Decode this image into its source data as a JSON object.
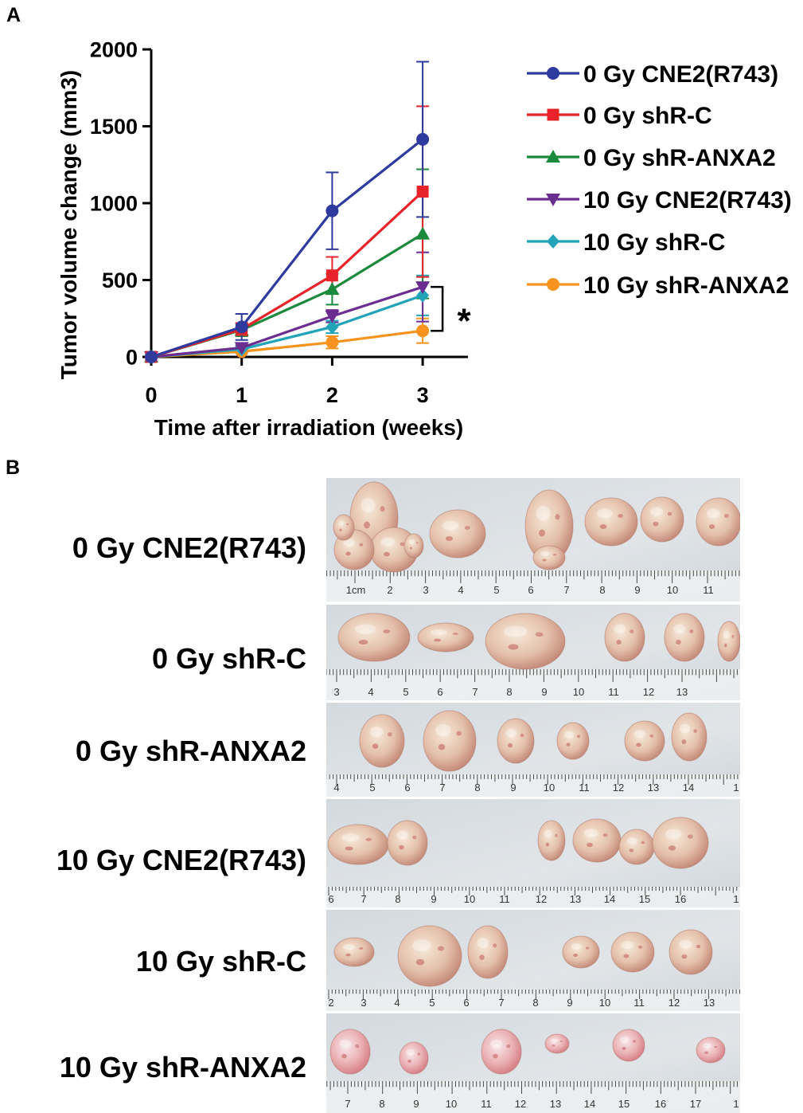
{
  "panels": {
    "a_label": "A",
    "b_label": "B"
  },
  "chart_data": {
    "type": "line",
    "xlabel": "Time after irradiation (weeks)",
    "ylabel": "Tumor volume change (mm3)",
    "x": [
      0,
      1,
      2,
      3
    ],
    "xticks": [
      "0",
      "1",
      "2",
      "3"
    ],
    "yticks": [
      "0",
      "500",
      "1000",
      "1500",
      "2000"
    ],
    "xlim": [
      0,
      3.5
    ],
    "ylim": [
      0,
      2000
    ],
    "grid": false,
    "legend_position": "right",
    "series": [
      {
        "name": "0 Gy CNE2(R743)",
        "color": "#2e3a9d",
        "marker": "circle",
        "values": [
          0,
          195,
          950,
          1415
        ],
        "error": [
          0,
          85,
          250,
          505
        ]
      },
      {
        "name": "0 Gy shR-C",
        "color": "#e8232a",
        "marker": "square",
        "values": [
          0,
          180,
          530,
          1075
        ],
        "error": [
          0,
          40,
          120,
          555
        ]
      },
      {
        "name": "0 Gy shR-ANXA2",
        "color": "#1b8a3c",
        "marker": "triangle-up",
        "values": [
          0,
          175,
          440,
          800
        ],
        "error": [
          0,
          40,
          100,
          420
        ]
      },
      {
        "name": "10 Gy CNE2(R743)",
        "color": "#6c2d91",
        "marker": "triangle-down",
        "values": [
          0,
          60,
          265,
          455
        ],
        "error": [
          0,
          15,
          40,
          225
        ]
      },
      {
        "name": "10 Gy shR-C",
        "color": "#22a4b8",
        "marker": "diamond",
        "values": [
          0,
          50,
          195,
          400
        ],
        "error": [
          0,
          15,
          40,
          130
        ]
      },
      {
        "name": "10 Gy shR-ANXA2",
        "color": "#f7931e",
        "marker": "circle",
        "values": [
          0,
          35,
          95,
          170
        ],
        "error": [
          0,
          10,
          40,
          80
        ]
      }
    ],
    "annotations": [
      {
        "text": "*",
        "x": 3,
        "between_series": [
          3,
          5
        ]
      }
    ]
  },
  "photo_panel": {
    "rows": [
      {
        "label": "0 Gy CNE2(R743)",
        "ruler": [
          "1cm",
          "2",
          "3",
          "4",
          "5",
          "6",
          "7",
          "8",
          "9",
          "10",
          "11"
        ]
      },
      {
        "label": "0 Gy shR-C",
        "ruler": [
          "3",
          "4",
          "5",
          "6",
          "7",
          "8",
          "9",
          "10",
          "11",
          "12",
          "13"
        ]
      },
      {
        "label": "0 Gy shR-ANXA2",
        "ruler": [
          "4",
          "5",
          "6",
          "7",
          "8",
          "9",
          "10",
          "11",
          "12",
          "13",
          "14",
          "1"
        ]
      },
      {
        "label": "10 Gy CNE2(R743)",
        "ruler": [
          "6",
          "7",
          "8",
          "9",
          "10",
          "11",
          "12",
          "13",
          "14",
          "15",
          "16",
          "1"
        ]
      },
      {
        "label": "10 Gy shR-C",
        "ruler": [
          "2",
          "3",
          "4",
          "5",
          "6",
          "7",
          "8",
          "9",
          "10",
          "11",
          "12",
          "13"
        ]
      },
      {
        "label": "10 Gy shR-ANXA2",
        "ruler": [
          "7",
          "8",
          "9",
          "10",
          "11",
          "12",
          "13",
          "14",
          "15",
          "16",
          "17",
          "1"
        ]
      }
    ]
  }
}
